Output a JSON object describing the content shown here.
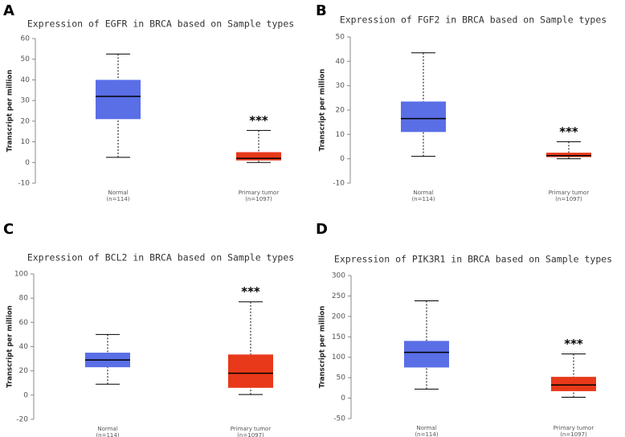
{
  "chart_data": [
    {
      "type": "box",
      "panel_label": "A",
      "title": "Expression of EGFR in BRCA based on Sample types",
      "y_label": "Transcript per million",
      "categories": [
        "Normal",
        "Primary tumor"
      ],
      "sample_sizes": [
        "(n=114)",
        "(n=1097)"
      ],
      "colors": [
        "#5a6ee6",
        "#e8391a"
      ],
      "boxes": [
        {
          "min": 2.5,
          "q1": 21,
          "median": 32,
          "q3": 40,
          "max": 52.5
        },
        {
          "min": 0,
          "q1": 1,
          "median": 2,
          "q3": 5,
          "max": 15.5
        }
      ],
      "annotations": [
        null,
        "***"
      ],
      "ylim": [
        -10,
        60
      ],
      "yticks": [
        -10,
        0,
        10,
        20,
        30,
        40,
        50,
        60
      ]
    },
    {
      "type": "box",
      "panel_label": "B",
      "title": "Expression of FGF2 in BRCA based on Sample types",
      "y_label": "Transcript per million",
      "categories": [
        "Normal",
        "Primary tumor"
      ],
      "sample_sizes": [
        "(n=114)",
        "(n=1097)"
      ],
      "colors": [
        "#5a6ee6",
        "#e8391a"
      ],
      "boxes": [
        {
          "min": 1,
          "q1": 11,
          "median": 16.5,
          "q3": 23.5,
          "max": 43.5
        },
        {
          "min": 0,
          "q1": 0.7,
          "median": 1.3,
          "q3": 2.5,
          "max": 7
        }
      ],
      "annotations": [
        null,
        "***"
      ],
      "ylim": [
        -10,
        50
      ],
      "yticks": [
        -10,
        0,
        10,
        20,
        30,
        40,
        50
      ]
    },
    {
      "type": "box",
      "panel_label": "C",
      "title": "Expression of BCL2 in BRCA based on Sample types",
      "y_label": "Transcript per million",
      "categories": [
        "Normal",
        "Primary tumor"
      ],
      "sample_sizes": [
        "(n=114)",
        "(n=1097)"
      ],
      "colors": [
        "#5a6ee6",
        "#e8391a"
      ],
      "boxes": [
        {
          "min": 9,
          "q1": 23,
          "median": 29,
          "q3": 35,
          "max": 50
        },
        {
          "min": 0.5,
          "q1": 6,
          "median": 18,
          "q3": 33.5,
          "max": 77
        }
      ],
      "annotations": [
        null,
        "***"
      ],
      "ylim": [
        -20,
        100
      ],
      "yticks": [
        -20,
        0,
        20,
        40,
        60,
        80,
        100
      ]
    },
    {
      "type": "box",
      "panel_label": "D",
      "title": "Expression of PIK3R1 in BRCA based on Sample types",
      "y_label": "Transcript per million",
      "categories": [
        "Normal",
        "Primary tumor"
      ],
      "sample_sizes": [
        "(n=114)",
        "(n=1097)"
      ],
      "colors": [
        "#5a6ee6",
        "#e8391a"
      ],
      "boxes": [
        {
          "min": 22,
          "q1": 75,
          "median": 112,
          "q3": 140,
          "max": 238
        },
        {
          "min": 2,
          "q1": 17,
          "median": 32,
          "q3": 52,
          "max": 108
        }
      ],
      "annotations": [
        null,
        "***"
      ],
      "ylim": [
        -50,
        300
      ],
      "yticks": [
        -50,
        0,
        50,
        100,
        150,
        200,
        250,
        300
      ]
    }
  ]
}
